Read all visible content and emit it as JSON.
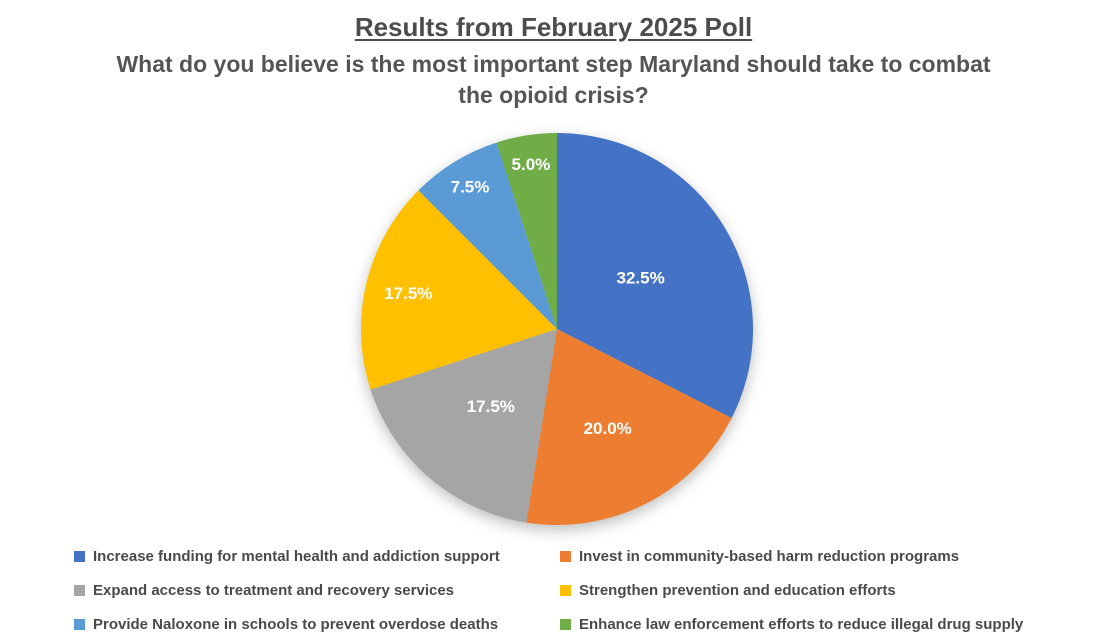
{
  "header": {
    "title": "Results from February 2025 Poll",
    "subtitle": "What do you believe is the most important step Maryland should take to combat the opioid crisis?"
  },
  "chart_data": {
    "type": "pie",
    "title": "Results from February 2025 Poll",
    "subtitle": "What do you believe is the most important step Maryland should take to combat the opioid crisis?",
    "start_angle_deg": 0,
    "direction": "clockwise",
    "total": 100,
    "data_label_color": "#FFFFFF",
    "legend_position": "bottom",
    "legend_columns": 2,
    "slices": [
      {
        "label": "Increase funding for mental health and addiction support",
        "value": 32.5,
        "display": "32.5%",
        "color": "#4472C4"
      },
      {
        "label": "Invest in community-based harm reduction programs",
        "value": 20.0,
        "display": "20.0%",
        "color": "#ED7D31"
      },
      {
        "label": "Expand access to treatment and recovery services",
        "value": 17.5,
        "display": "17.5%",
        "color": "#A5A5A5"
      },
      {
        "label": "Strengthen prevention and education efforts",
        "value": 17.5,
        "display": "17.5%",
        "color": "#FFC000"
      },
      {
        "label": "Provide Naloxone in schools to prevent overdose deaths",
        "value": 7.5,
        "display": "7.5%",
        "color": "#5B9BD5"
      },
      {
        "label": "Enhance law enforcement efforts to reduce illegal drug supply",
        "value": 5.0,
        "display": "5.0%",
        "color": "#70AD47"
      }
    ],
    "label_radius_fracs": [
      0.5,
      0.57,
      0.52,
      0.78,
      0.85,
      0.85
    ]
  }
}
